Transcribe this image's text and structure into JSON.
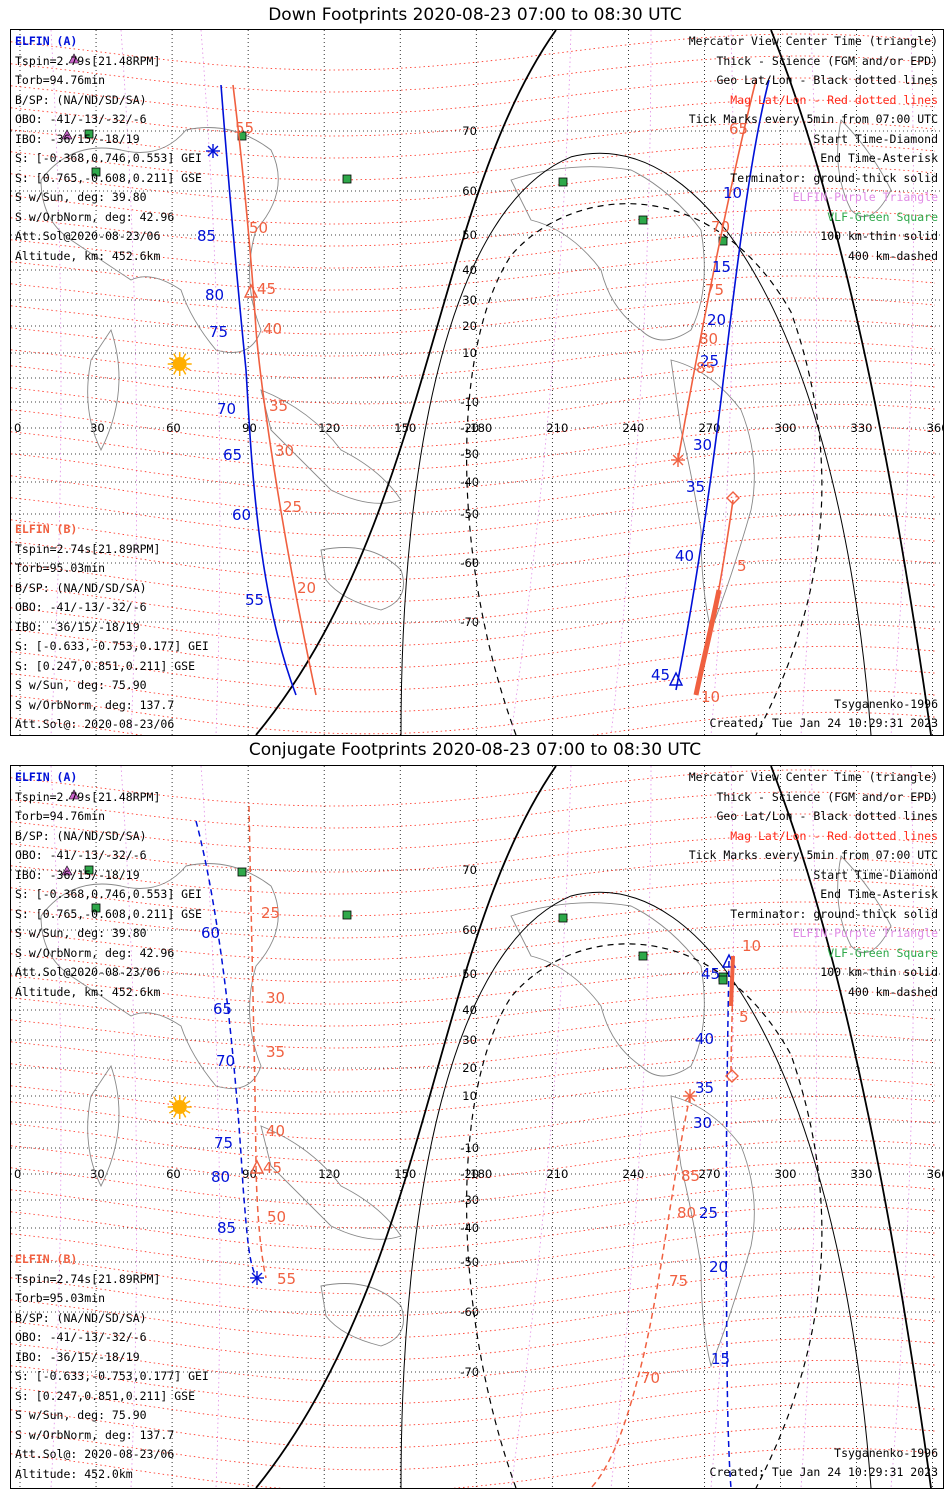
{
  "panels": [
    {
      "title": "Down Footprints 2020-08-23 07:00 to 08:30 UTC",
      "elfin_a": [
        "ELFIN (A)",
        "Tspin=2.79s[21.48RPM]",
        "Torb=94.76min",
        "B/SP: (NA/ND/SD/SA)",
        "OBO: -41/-13/-32/-6",
        "IBO: -36/15/-18/19",
        "S: [-0.368,0.746,0.553] GEI",
        "S: [0.765,-0.608,0.211] GSE",
        "S w/Sun, deg: 39.80",
        "S w/OrbNorm, deg: 42.96",
        "Att.Sol@2020-08-23/06",
        "Altitude, km: 452.6km"
      ],
      "elfin_b": [
        "ELFIN (B)",
        "Tspin=2.74s[21.89RPM]",
        "Torb=95.03min",
        "B/SP: (NA/ND/SD/SA)",
        "OBO: -41/-13/-32/-6",
        "IBO: -36/15/-18/19",
        "S: [-0.633,-0.753,0.177] GEI",
        "S: [0.247,0.851,0.211] GSE",
        "S w/Sun, deg: 75.90",
        "S w/OrbNorm, deg: 137.7",
        "Att.Sol@: 2020-08-23/06",
        "Altitude: 452.0km"
      ],
      "model": "Tsyganenko-1996",
      "created": "Created: Tue Jan 24 10:29:31 2023"
    },
    {
      "title": "Conjugate Footprints 2020-08-23 07:00 to 08:30 UTC",
      "elfin_a": [
        "ELFIN (A)",
        "Tspin=2.79s[21.48RPM]",
        "Torb=94.76min",
        "B/SP: (NA/ND/SD/SA)",
        "OBO: -41/-13/-32/-6",
        "IBO: -36/15/-18/19",
        "S: [-0.368,0.746,0.553] GEI",
        "S: [0.765,-0.608,0.211] GSE",
        "S w/Sun, deg: 39.80",
        "S w/OrbNorm, deg: 42.96",
        "Att.Sol@2020-08-23/06",
        "Altitude, km: 452.6km"
      ],
      "elfin_b": [
        "ELFIN (B)",
        "Tspin=2.74s[21.89RPM]",
        "Torb=95.03min",
        "B/SP: (NA/ND/SD/SA)",
        "OBO: -41/-13/-32/-6",
        "IBO: -36/15/-18/19",
        "S: [-0.633,-0.753,0.177] GEI",
        "S: [0.247,0.851,0.211] GSE",
        "S w/Sun, deg: 75.90",
        "S w/OrbNorm, deg: 137.7",
        "Att.Sol@: 2020-08-23/06",
        "Altitude: 452.0km"
      ],
      "model": "Tsyganenko-1996",
      "created": "Created: Tue Jan 24 10:29:31 2023"
    }
  ],
  "legend": [
    {
      "text": "Mercator View Center Time (triangle)",
      "color": "#000000"
    },
    {
      "text": "Thick - Science (FGM and/or EPD)",
      "color": "#000000"
    },
    {
      "text": "Geo Lat/Lon - Black dotted lines",
      "color": "#000000"
    },
    {
      "text": "Mag Lat/Lon - Red dotted lines",
      "color": "#ff2a1a"
    },
    {
      "text": "Tick Marks every 5min from 07:00 UTC",
      "color": "#000000"
    },
    {
      "text": "Start Time-Diamond",
      "color": "#000000"
    },
    {
      "text": "End Time-Asterisk",
      "color": "#000000"
    },
    {
      "text": "Terminator: ground-thick solid",
      "color": "#000000"
    },
    {
      "text": "ELFIN-Purple Triangle",
      "color": "#e18ce6"
    },
    {
      "text": "VLF-Green Square",
      "color": "#2ea84a"
    },
    {
      "text": "100 km-thin solid",
      "color": "#000000"
    },
    {
      "text": "400 km-dashed",
      "color": "#000000"
    }
  ],
  "lon_ticks": [
    "0",
    "30",
    "60",
    "90",
    "120",
    "150",
    "180",
    "210",
    "240",
    "270",
    "300",
    "330",
    "360"
  ],
  "lat_ticks": [
    "70",
    "60",
    "50",
    "40",
    "30",
    "20",
    "10",
    "-10",
    "-20",
    "-30",
    "-40",
    "-50",
    "-60",
    "-70"
  ],
  "colors": {
    "elfin_a": "#0010d8",
    "elfin_b": "#f06040",
    "mag_grid": "#ff2a1a",
    "geo_grid": "#000000",
    "elfin_marker": "#cc66cc",
    "vlf": "#2ea84a",
    "sun": "#ffae00"
  },
  "down_tracks": {
    "a_ticks": [
      "85",
      "80",
      "75",
      "70",
      "65",
      "60",
      "55",
      "10",
      "15",
      "20",
      "25",
      "30",
      "35",
      "40",
      "45"
    ],
    "b_ticks": [
      "55",
      "50",
      "45",
      "40",
      "35",
      "30",
      "25",
      "20",
      "65",
      "70",
      "75",
      "80",
      "85",
      "5",
      "10"
    ]
  },
  "conj_tracks": {
    "a_ticks": [
      "60",
      "65",
      "70",
      "75",
      "80",
      "85",
      "45",
      "40",
      "35",
      "30",
      "25",
      "20",
      "15"
    ],
    "b_ticks": [
      "25",
      "30",
      "35",
      "40",
      "45",
      "50",
      "55",
      "10",
      "5",
      "85",
      "80",
      "75",
      "70"
    ]
  }
}
